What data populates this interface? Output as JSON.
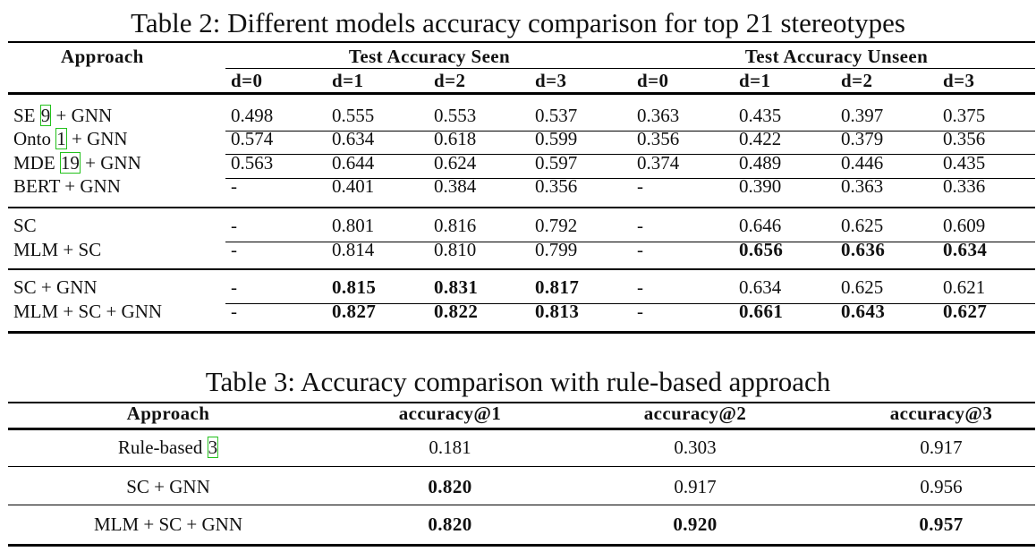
{
  "table2": {
    "caption": "Table 2: Different models accuracy comparison for top 21 stereotypes",
    "header": {
      "approach": "Approach",
      "group_seen": "Test Accuracy Seen",
      "group_unseen": "Test Accuracy Unseen",
      "subcols": [
        "d=0",
        "d=1",
        "d=2",
        "d=3",
        "d=0",
        "d=1",
        "d=2",
        "d=3"
      ]
    },
    "rows": [
      {
        "pre": "SE ",
        "cite": "9",
        "post": " + GNN",
        "cells": [
          "0.498",
          "0.555",
          "0.553",
          "0.537",
          "0.363",
          "0.435",
          "0.397",
          "0.375"
        ],
        "bold": []
      },
      {
        "pre": "Onto ",
        "cite": "1",
        "post": " + GNN",
        "cells": [
          "0.574",
          "0.634",
          "0.618",
          "0.599",
          "0.356",
          "0.422",
          "0.379",
          "0.356"
        ],
        "bold": []
      },
      {
        "pre": "MDE ",
        "cite": "19",
        "post": " + GNN",
        "cells": [
          "0.563",
          "0.644",
          "0.624",
          "0.597",
          "0.374",
          "0.489",
          "0.446",
          "0.435"
        ],
        "bold": []
      },
      {
        "pre": "BERT + GNN",
        "cite": "",
        "post": "",
        "cells": [
          "-",
          "0.401",
          "0.384",
          "0.356",
          "-",
          "0.390",
          "0.363",
          "0.336"
        ],
        "bold": []
      },
      {
        "pre": "SC",
        "cite": "",
        "post": "",
        "cells": [
          "-",
          "0.801",
          "0.816",
          "0.792",
          "-",
          "0.646",
          "0.625",
          "0.609"
        ],
        "bold": []
      },
      {
        "pre": "MLM + SC",
        "cite": "",
        "post": "",
        "cells": [
          "-",
          "0.814",
          "0.810",
          "0.799",
          "-",
          "0.656",
          "0.636",
          "0.634"
        ],
        "bold": [
          5,
          6,
          7
        ]
      },
      {
        "pre": "SC + GNN",
        "cite": "",
        "post": "",
        "cells": [
          "-",
          "0.815",
          "0.831",
          "0.817",
          "-",
          "0.634",
          "0.625",
          "0.621"
        ],
        "bold": [
          1,
          2,
          3
        ]
      },
      {
        "pre": "MLM + SC + GNN",
        "cite": "",
        "post": "",
        "cells": [
          "-",
          "0.827",
          "0.822",
          "0.813",
          "-",
          "0.661",
          "0.643",
          "0.627"
        ],
        "bold": [
          1,
          2,
          3,
          5,
          6,
          7
        ]
      }
    ]
  },
  "table3": {
    "caption": "Table 3: Accuracy comparison with rule-based approach",
    "header": [
      "Approach",
      "accuracy@1",
      "accuracy@2",
      "accuracy@3"
    ],
    "rows": [
      {
        "pre": "Rule-based ",
        "cite": "3",
        "cells": [
          "0.181",
          "0.303",
          "0.917"
        ],
        "bold": []
      },
      {
        "pre": "SC + GNN",
        "cite": "",
        "cells": [
          "0.820",
          "0.917",
          "0.956"
        ],
        "bold": [
          0
        ]
      },
      {
        "pre": "MLM + SC + GNN",
        "cite": "",
        "cells": [
          "0.820",
          "0.920",
          "0.957"
        ],
        "bold": [
          0,
          1,
          2
        ]
      }
    ]
  }
}
